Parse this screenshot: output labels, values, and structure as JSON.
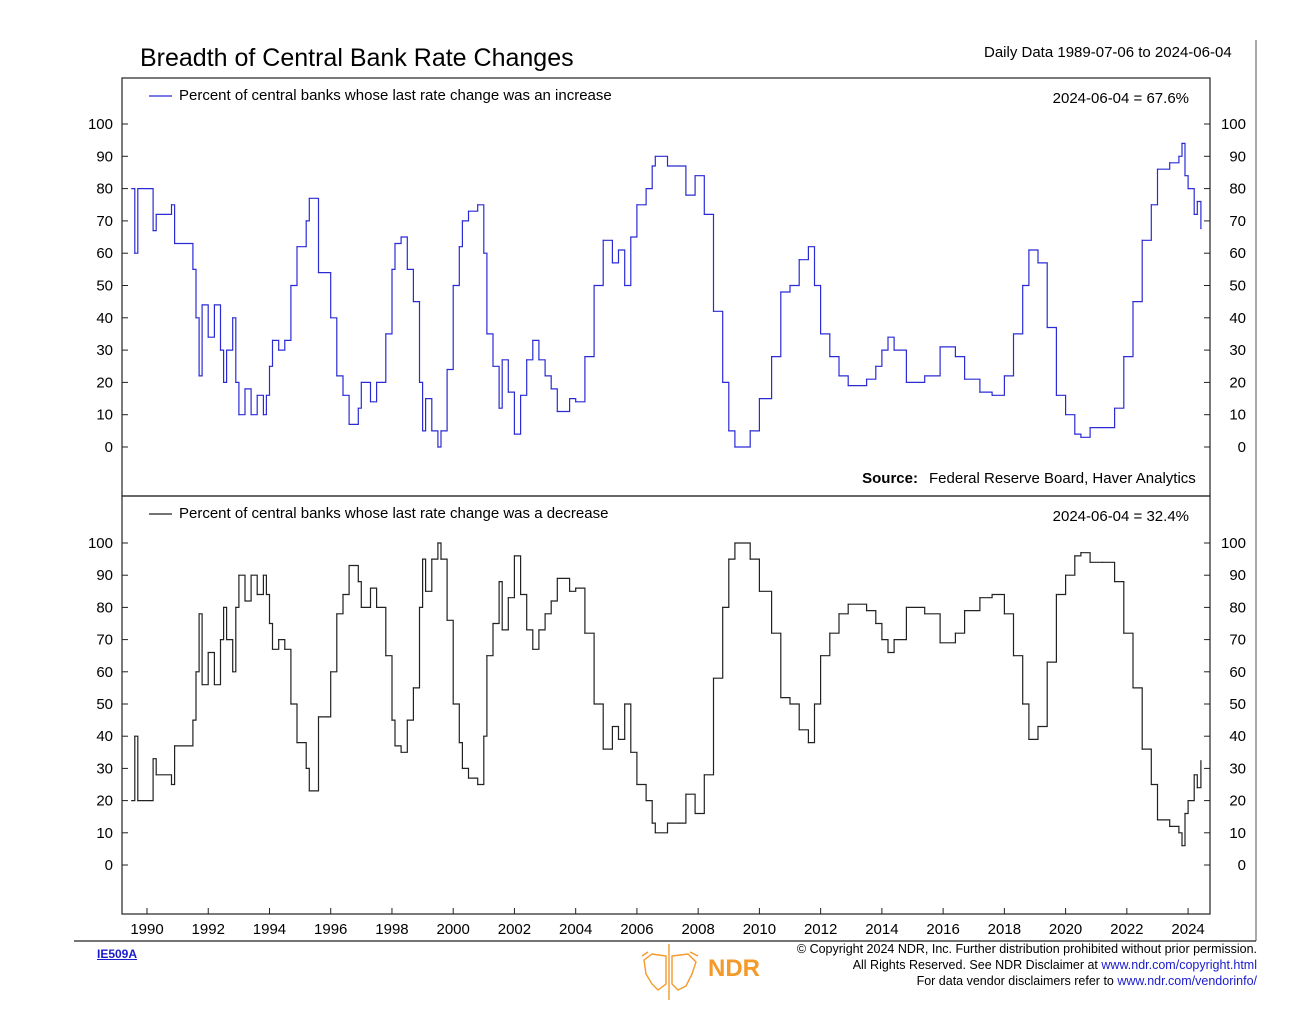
{
  "header": {
    "title": "Breadth of Central Bank Rate Changes",
    "date_range": "Daily Data 1989-07-06 to 2024-06-04"
  },
  "footer": {
    "chart_code": "IE509A",
    "copyright": "© Copyright 2024 NDR, Inc. Further distribution prohibited without prior permission.",
    "rights_prefix": "All Rights Reserved. See NDR Disclaimer at ",
    "rights_link": "www.ndr.com/copyright.html",
    "vendor_prefix": "For data vendor disclaimers refer to ",
    "vendor_link": "www.ndr.com/vendorinfo/",
    "logo_text": "NDR",
    "logo_color": "#f39a2a"
  },
  "chart_data": [
    {
      "type": "line",
      "legend": "Percent of central banks whose last rate change was an increase",
      "annotation": "2024-06-04 = 67.6%",
      "source_label": "Source:",
      "source": "Federal Reserve Board, Haver Analytics",
      "color": "#2b2bd6",
      "ylim": [
        0,
        100
      ],
      "yticks": [
        0,
        10,
        20,
        30,
        40,
        50,
        60,
        70,
        80,
        90,
        100
      ],
      "x": [
        1989.5,
        1989.6,
        1989.7,
        1990.1,
        1990.2,
        1990.3,
        1990.8,
        1990.9,
        1991.5,
        1991.6,
        1991.7,
        1991.8,
        1992.0,
        1992.2,
        1992.4,
        1992.5,
        1992.6,
        1992.8,
        1992.9,
        1993.0,
        1993.2,
        1993.4,
        1993.6,
        1993.8,
        1993.9,
        1994.0,
        1994.1,
        1994.3,
        1994.5,
        1994.7,
        1994.9,
        1995.2,
        1995.3,
        1995.6,
        1995.9,
        1996.0,
        1996.2,
        1996.4,
        1996.6,
        1996.9,
        1997.0,
        1997.3,
        1997.5,
        1997.8,
        1998.0,
        1998.1,
        1998.3,
        1998.5,
        1998.7,
        1998.9,
        1999.0,
        1999.1,
        1999.3,
        1999.5,
        1999.6,
        1999.8,
        2000.0,
        2000.2,
        2000.3,
        2000.5,
        2000.8,
        2001.0,
        2001.1,
        2001.3,
        2001.5,
        2001.6,
        2001.8,
        2002.0,
        2002.2,
        2002.4,
        2002.6,
        2002.8,
        2003.0,
        2003.2,
        2003.4,
        2003.8,
        2004.0,
        2004.3,
        2004.6,
        2004.9,
        2005.2,
        2005.4,
        2005.6,
        2005.8,
        2006.0,
        2006.3,
        2006.5,
        2006.6,
        2007.0,
        2007.4,
        2007.6,
        2007.9,
        2008.2,
        2008.5,
        2008.8,
        2009.0,
        2009.2,
        2009.7,
        2010.0,
        2010.4,
        2010.7,
        2011.0,
        2011.3,
        2011.6,
        2011.8,
        2012.0,
        2012.3,
        2012.6,
        2012.9,
        2013.5,
        2013.8,
        2014.0,
        2014.2,
        2014.4,
        2014.8,
        2015.4,
        2015.9,
        2016.4,
        2016.7,
        2017.2,
        2017.6,
        2018.0,
        2018.3,
        2018.6,
        2018.8,
        2019.1,
        2019.4,
        2019.7,
        2020.0,
        2020.3,
        2020.5,
        2020.8,
        2021.2,
        2021.6,
        2021.9,
        2022.2,
        2022.5,
        2022.8,
        2023.0,
        2023.4,
        2023.7,
        2023.8,
        2023.9,
        2024.0,
        2024.2,
        2024.3,
        2024.42
      ],
      "values": [
        80,
        60,
        80,
        80,
        67,
        72,
        75,
        63,
        55,
        40,
        22,
        44,
        34,
        44,
        30,
        20,
        30,
        40,
        20,
        10,
        18,
        10,
        16,
        10,
        16,
        25,
        33,
        30,
        33,
        50,
        62,
        70,
        77,
        54,
        54,
        40,
        22,
        16,
        7,
        12,
        20,
        14,
        20,
        35,
        55,
        63,
        65,
        55,
        45,
        20,
        5,
        15,
        5,
        0,
        5,
        24,
        50,
        62,
        70,
        73,
        75,
        60,
        35,
        25,
        12,
        27,
        17,
        4,
        16,
        27,
        33,
        27,
        22,
        18,
        11,
        15,
        14,
        28,
        50,
        64,
        57,
        61,
        50,
        65,
        75,
        80,
        87,
        90,
        87,
        87,
        78,
        84,
        72,
        42,
        20,
        5,
        0,
        5,
        15,
        28,
        48,
        50,
        58,
        62,
        50,
        35,
        28,
        22,
        19,
        21,
        25,
        30,
        34,
        30,
        20,
        22,
        31,
        28,
        21,
        17,
        16,
        22,
        35,
        50,
        61,
        57,
        37,
        16,
        10,
        4,
        3,
        6,
        6,
        12,
        28,
        45,
        64,
        75,
        86,
        88,
        90,
        94,
        84,
        80,
        72,
        76,
        67.6
      ]
    },
    {
      "type": "line",
      "legend": "Percent of central banks whose last rate change was a decrease",
      "annotation": "2024-06-04 = 32.4%",
      "color": "#222222",
      "ylim": [
        0,
        100
      ],
      "yticks": [
        0,
        10,
        20,
        30,
        40,
        50,
        60,
        70,
        80,
        90,
        100
      ],
      "xticks": [
        1990,
        1992,
        1994,
        1996,
        1998,
        2000,
        2002,
        2004,
        2006,
        2008,
        2010,
        2012,
        2014,
        2016,
        2018,
        2020,
        2022,
        2024
      ],
      "x": [
        1989.5,
        1989.6,
        1989.7,
        1990.1,
        1990.2,
        1990.3,
        1990.8,
        1990.9,
        1991.5,
        1991.6,
        1991.7,
        1991.8,
        1992.0,
        1992.2,
        1992.4,
        1992.5,
        1992.6,
        1992.8,
        1992.9,
        1993.0,
        1993.2,
        1993.4,
        1993.6,
        1993.8,
        1993.9,
        1994.0,
        1994.1,
        1994.3,
        1994.5,
        1994.7,
        1994.9,
        1995.2,
        1995.3,
        1995.6,
        1995.9,
        1996.0,
        1996.2,
        1996.4,
        1996.6,
        1996.9,
        1997.0,
        1997.3,
        1997.5,
        1997.8,
        1998.0,
        1998.1,
        1998.3,
        1998.5,
        1998.7,
        1998.9,
        1999.0,
        1999.1,
        1999.3,
        1999.5,
        1999.6,
        1999.8,
        2000.0,
        2000.2,
        2000.3,
        2000.5,
        2000.8,
        2001.0,
        2001.1,
        2001.3,
        2001.5,
        2001.6,
        2001.8,
        2002.0,
        2002.2,
        2002.4,
        2002.6,
        2002.8,
        2003.0,
        2003.2,
        2003.4,
        2003.8,
        2004.0,
        2004.3,
        2004.6,
        2004.9,
        2005.2,
        2005.4,
        2005.6,
        2005.8,
        2006.0,
        2006.3,
        2006.5,
        2006.6,
        2007.0,
        2007.4,
        2007.6,
        2007.9,
        2008.2,
        2008.5,
        2008.8,
        2009.0,
        2009.2,
        2009.7,
        2010.0,
        2010.4,
        2010.7,
        2011.0,
        2011.3,
        2011.6,
        2011.8,
        2012.0,
        2012.3,
        2012.6,
        2012.9,
        2013.5,
        2013.8,
        2014.0,
        2014.2,
        2014.4,
        2014.8,
        2015.4,
        2015.9,
        2016.4,
        2016.7,
        2017.2,
        2017.6,
        2018.0,
        2018.3,
        2018.6,
        2018.8,
        2019.1,
        2019.4,
        2019.7,
        2020.0,
        2020.3,
        2020.5,
        2020.8,
        2021.2,
        2021.6,
        2021.9,
        2022.2,
        2022.5,
        2022.8,
        2023.0,
        2023.4,
        2023.7,
        2023.8,
        2023.9,
        2024.0,
        2024.2,
        2024.3,
        2024.42
      ],
      "values": [
        20,
        40,
        20,
        20,
        33,
        28,
        25,
        37,
        45,
        60,
        78,
        56,
        66,
        56,
        70,
        80,
        70,
        60,
        80,
        90,
        82,
        90,
        84,
        90,
        84,
        75,
        67,
        70,
        67,
        50,
        38,
        30,
        23,
        46,
        46,
        60,
        78,
        84,
        93,
        88,
        80,
        86,
        80,
        65,
        45,
        37,
        35,
        45,
        55,
        80,
        95,
        85,
        95,
        100,
        95,
        76,
        50,
        38,
        30,
        27,
        25,
        40,
        65,
        75,
        88,
        73,
        83,
        96,
        84,
        73,
        67,
        73,
        78,
        82,
        89,
        85,
        86,
        72,
        50,
        36,
        43,
        39,
        50,
        35,
        25,
        20,
        13,
        10,
        13,
        13,
        22,
        16,
        28,
        58,
        80,
        95,
        100,
        95,
        85,
        72,
        52,
        50,
        42,
        38,
        50,
        65,
        72,
        78,
        81,
        79,
        75,
        70,
        66,
        70,
        80,
        78,
        69,
        72,
        79,
        83,
        84,
        78,
        65,
        50,
        39,
        43,
        63,
        84,
        90,
        96,
        97,
        94,
        94,
        88,
        72,
        55,
        36,
        25,
        14,
        12,
        10,
        6,
        16,
        20,
        28,
        24,
        32.4
      ]
    }
  ]
}
